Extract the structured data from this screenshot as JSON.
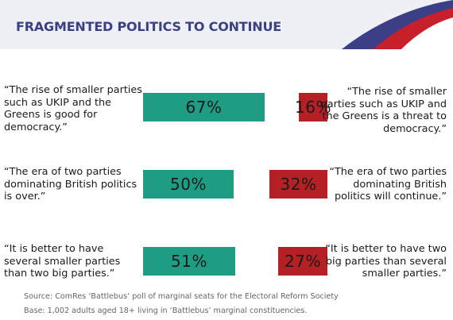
{
  "title": "FRAGMENTED POLITICS TO CONTINUE",
  "colors": {
    "agree": "#1f9d84",
    "disagree": "#b52025",
    "title": "#3a3f86"
  },
  "chart_data": {
    "type": "bar",
    "title": "FRAGMENTED POLITICS TO CONTINUE",
    "unit": "%",
    "rows": [
      {
        "agree_quote": "“The rise of smaller parties such as UKIP and the Greens is good for democracy.”",
        "agree_value": 67,
        "agree_label": "67%",
        "disagree_quote": "“The rise of smaller parties such as UKIP and the Greens is a threat to democracy.”",
        "disagree_value": 16,
        "disagree_label": "16%"
      },
      {
        "agree_quote": "“The era of two parties dominating British politics is over.”",
        "agree_value": 50,
        "agree_label": "50%",
        "disagree_quote": "“The era of two parties dominating British politics will continue.”",
        "disagree_value": 32,
        "disagree_label": "32%"
      },
      {
        "agree_quote": "“It is better to have several smaller parties than two big parties.”",
        "agree_value": 51,
        "agree_label": "51%",
        "disagree_quote": "“It is better to have two big parties than several smaller parties.”",
        "disagree_value": 27,
        "disagree_label": "27%"
      }
    ]
  },
  "footer": {
    "source": "Source: ComRes ‘Battlebus’ poll of marginal seats for the Electoral Reform Society",
    "base": "Base: 1,002 adults aged 18+ living in ‘Battlebus’ marginal constituencies."
  }
}
